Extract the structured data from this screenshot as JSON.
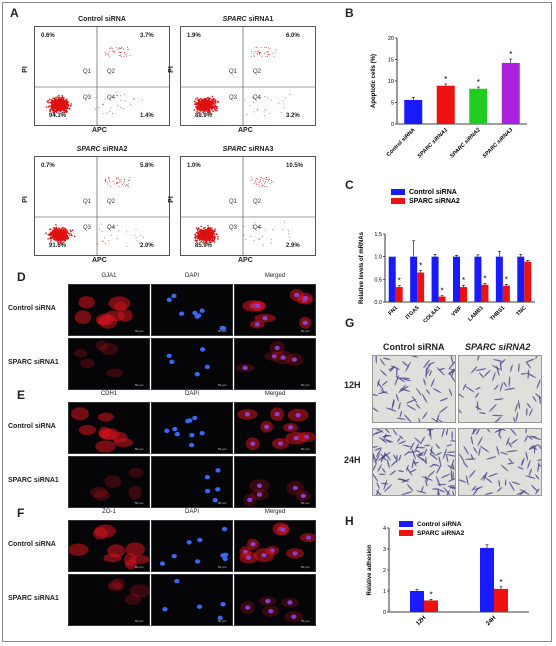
{
  "panel_labels": {
    "A": "A",
    "B": "B",
    "C": "C",
    "D": "D",
    "E": "E",
    "F": "F",
    "G": "G",
    "H": "H"
  },
  "flow": {
    "x_label": "APC",
    "y_label": "PI",
    "quadrants": [
      "Q1",
      "Q2",
      "Q3",
      "Q4"
    ],
    "panels": [
      {
        "title": "Control siRNA",
        "q1": "0.6%",
        "q2": "3.7%",
        "q3": "94.3%",
        "q4": "1.4%"
      },
      {
        "title": "SPARC siRNA1",
        "q1": "1.9%",
        "q2": "6.0%",
        "q3": "88.9%",
        "q4": "3.2%"
      },
      {
        "title": "SPARC siRNA2",
        "q1": "0.7%",
        "q2": "5.8%",
        "q3": "91.6%",
        "q4": "2.0%"
      },
      {
        "title": "SPARC siRNA3",
        "q1": "1.0%",
        "q2": "10.5%",
        "q3": "85.9%",
        "q4": "2.9%"
      }
    ]
  },
  "if": {
    "col_heads": [
      "DAPI",
      "Merged"
    ],
    "D_marker": "GJA1",
    "E_marker": "CDH1",
    "F_marker": "ZO-1",
    "rows": [
      "Control siRNA",
      "SPARC siRNA1"
    ],
    "scale_label": "50 µm"
  },
  "migration": {
    "col_heads": [
      "Control siRNA",
      "SPARC siRNA2"
    ],
    "rows": [
      "12H",
      "24H"
    ]
  },
  "chart_data": [
    {
      "panel": "B",
      "type": "bar",
      "categories": [
        "Control siRNA",
        "SPARC siRNA1",
        "SPARC siRNA2",
        "SPARC siRNA3"
      ],
      "values": [
        5.6,
        8.9,
        8.2,
        14.2
      ],
      "errors": [
        0.6,
        0.4,
        0.4,
        0.9
      ],
      "colors": [
        "#1a1aff",
        "#ee1111",
        "#22cc22",
        "#aa22dd"
      ],
      "significance": [
        "",
        "*",
        "*",
        "*"
      ],
      "ylabel": "Apoptotic cells (%)",
      "ylim": [
        0,
        20
      ],
      "yticks": [
        0,
        5,
        10,
        15,
        20
      ]
    },
    {
      "panel": "C",
      "type": "bar",
      "categories": [
        "FN1",
        "ITGA5",
        "COL6A1",
        "VWF",
        "LAMB1",
        "THBS1",
        "TNC"
      ],
      "series": [
        {
          "name": "Control siRNA",
          "color": "#1a1aff",
          "values": [
            1.0,
            1.0,
            1.0,
            1.0,
            1.0,
            1.0,
            1.0
          ],
          "errors": [
            0.0,
            0.35,
            0.05,
            0.03,
            0.04,
            0.12,
            0.05
          ],
          "significance": [
            "",
            "",
            "",
            "",
            "",
            "",
            ""
          ]
        },
        {
          "name": "SPARC siRNA2",
          "color": "#ee1111",
          "values": [
            0.33,
            0.65,
            0.12,
            0.33,
            0.38,
            0.36,
            0.89
          ],
          "errors": [
            0.03,
            0.04,
            0.02,
            0.04,
            0.03,
            0.03,
            0.03
          ],
          "significance": [
            "*",
            "*",
            "*",
            "*",
            "*",
            "*",
            ""
          ]
        }
      ],
      "ylabel": "Relative levels of mRNAs",
      "ylim": [
        0,
        1.5
      ],
      "yticks": [
        "0.0",
        "0.5",
        "1.0",
        "1.5"
      ],
      "legend": "top-left"
    },
    {
      "panel": "H",
      "type": "bar",
      "categories": [
        "12H",
        "24H"
      ],
      "series": [
        {
          "name": "Control siRNA",
          "color": "#1a1aff",
          "values": [
            1.0,
            3.05
          ],
          "errors": [
            0.07,
            0.15
          ],
          "significance": [
            "",
            ""
          ]
        },
        {
          "name": "SPARC siRNA2",
          "color": "#ee1111",
          "values": [
            0.55,
            1.1
          ],
          "errors": [
            0.05,
            0.1
          ],
          "significance": [
            "*",
            "*"
          ]
        }
      ],
      "ylabel": "Relative adhesion",
      "ylim": [
        0,
        4
      ],
      "yticks": [
        0,
        1,
        2,
        3,
        4
      ],
      "legend": "top-left"
    }
  ]
}
